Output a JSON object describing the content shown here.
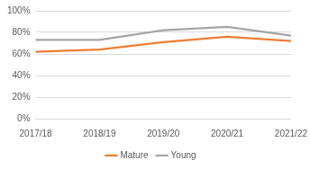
{
  "chart_data": {
    "type": "line",
    "categories": [
      "2017/18",
      "2018/19",
      "2019/20",
      "2020/21",
      "2021/22"
    ],
    "series": [
      {
        "name": "Mature",
        "color": "#ed7d31",
        "values": [
          62,
          64,
          71,
          76,
          72
        ]
      },
      {
        "name": "Young",
        "color": "#a5a5a5",
        "values": [
          73,
          73,
          82,
          85,
          77
        ]
      }
    ],
    "ylim": [
      0,
      100
    ],
    "yticks": [
      {
        "value": 0,
        "label": "0%"
      },
      {
        "value": 20,
        "label": "20%"
      },
      {
        "value": 40,
        "label": "40%"
      },
      {
        "value": 60,
        "label": "60%"
      },
      {
        "value": 80,
        "label": "80%"
      },
      {
        "value": 100,
        "label": "100%"
      }
    ],
    "grid": true,
    "legend": "bottom"
  }
}
